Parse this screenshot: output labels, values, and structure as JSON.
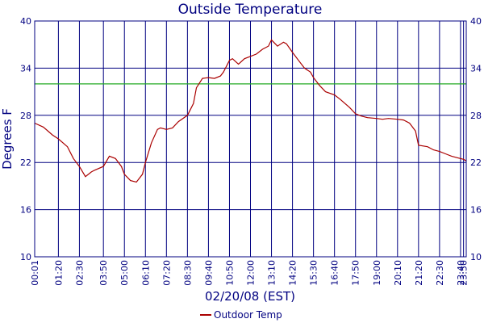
{
  "chart_data": {
    "type": "line",
    "title": "Outside Temperature",
    "xlabel": "02/20/08 (EST)",
    "ylabel": "Degrees F",
    "ylim": [
      10,
      40
    ],
    "yticks": [
      "10",
      "16",
      "22",
      "28",
      "34",
      "40"
    ],
    "xticks": [
      "00:01",
      "01:20",
      "02:30",
      "03:50",
      "05:00",
      "06:10",
      "07:20",
      "08:30",
      "09:40",
      "10:50",
      "12:00",
      "13:10",
      "14:20",
      "15:30",
      "16:40",
      "17:50",
      "19:00",
      "20:10",
      "21:20",
      "22:30",
      "23:40",
      "23:50"
    ],
    "xlim": [
      "00:01",
      "23:59"
    ],
    "grid": true,
    "reference_line": {
      "value": 32,
      "color": "#22aa22"
    },
    "legend_position": "bottom-center",
    "colors": {
      "axis_text": "#000080",
      "grid": "#000080",
      "line": "#aa0000",
      "freezing_line": "#22aa22"
    },
    "series": [
      {
        "name": "Outdoor Temp",
        "color": "#aa0000",
        "x": [
          "00:01",
          "00:30",
          "01:00",
          "01:20",
          "01:50",
          "02:10",
          "02:30",
          "02:50",
          "03:10",
          "03:20",
          "03:50",
          "04:10",
          "04:30",
          "04:50",
          "05:00",
          "05:20",
          "05:40",
          "06:00",
          "06:10",
          "06:30",
          "06:50",
          "07:00",
          "07:20",
          "07:40",
          "08:00",
          "08:30",
          "08:50",
          "09:00",
          "09:20",
          "09:40",
          "10:00",
          "10:20",
          "10:30",
          "10:50",
          "11:00",
          "11:20",
          "11:40",
          "12:00",
          "12:20",
          "12:40",
          "13:00",
          "13:10",
          "13:30",
          "13:50",
          "14:00",
          "14:20",
          "14:40",
          "15:00",
          "15:20",
          "15:30",
          "15:50",
          "16:10",
          "16:40",
          "17:00",
          "17:30",
          "17:50",
          "18:10",
          "18:30",
          "19:00",
          "19:20",
          "19:40",
          "20:10",
          "20:30",
          "20:50",
          "21:10",
          "21:20",
          "21:50",
          "22:10",
          "22:30",
          "22:50",
          "23:10",
          "23:30",
          "23:50",
          "23:59"
        ],
        "values": [
          27,
          26.5,
          25.5,
          25,
          24,
          22.5,
          21.5,
          20.2,
          20.8,
          21,
          21.5,
          22.8,
          22.5,
          21.5,
          20.5,
          19.7,
          19.5,
          20.5,
          22,
          24.5,
          26.2,
          26.4,
          26.2,
          26.4,
          27.2,
          28,
          29.5,
          31.5,
          32.7,
          32.8,
          32.7,
          33,
          33.5,
          35,
          35.2,
          34.5,
          35.2,
          35.5,
          35.8,
          36.4,
          36.8,
          37.6,
          36.8,
          37.3,
          37.1,
          36,
          35,
          34,
          33.5,
          32.8,
          31.8,
          31,
          30.6,
          30,
          29,
          28.2,
          27.9,
          27.7,
          27.6,
          27.5,
          27.6,
          27.5,
          27.4,
          27,
          26,
          24.2,
          24,
          23.6,
          23.4,
          23.1,
          22.8,
          22.6,
          22.4,
          22.2
        ]
      }
    ]
  }
}
